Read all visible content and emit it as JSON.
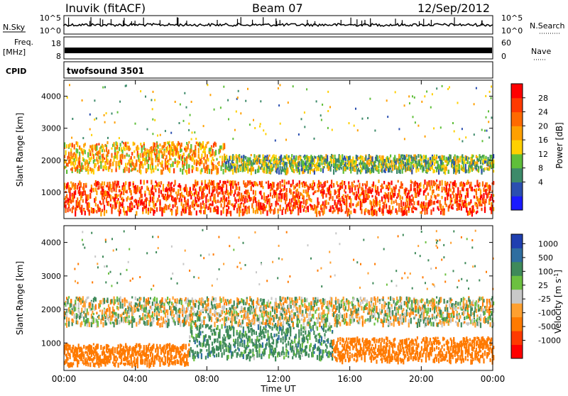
{
  "header": {
    "station": "Inuvik (fitACF)",
    "beam": "Beam 07",
    "date": "12/Sep/2012"
  },
  "strip_nsky": {
    "left_label": "N.Sky",
    "right_label": "N.Search",
    "tick_top": "10^5",
    "tick_bottom": "10^0",
    "right_tick_top": "10^5",
    "right_tick_bottom": "10^0"
  },
  "strip_freq": {
    "left_label_line1": "Freq.",
    "left_label_line2": "[MHz]",
    "tick_left_top": "18",
    "tick_left_bottom": "8",
    "right_label": "Nave",
    "right_tick_top": "60",
    "right_tick_bottom": "0"
  },
  "cpid": {
    "label": "CPID",
    "program": "twofsound 3501"
  },
  "power_panel": {
    "ylabel": "Slant Range [km]",
    "yticks": [
      "1000",
      "2000",
      "3000",
      "4000"
    ],
    "colorbar_label": "Power [dB]",
    "colorbar_ticks": [
      "28",
      "24",
      "20",
      "16",
      "12",
      "8",
      "4"
    ],
    "colors": [
      "#1a1aff",
      "#2b4fb0",
      "#3d8a6a",
      "#5fbf3a",
      "#ffd000",
      "#ffa000",
      "#ff6a00",
      "#ff3a00",
      "#ff0000"
    ]
  },
  "velocity_panel": {
    "ylabel": "Slant Range [km]",
    "yticks": [
      "1000",
      "2000",
      "3000",
      "4000"
    ],
    "colorbar_label": "Velocity [m s",
    "colorbar_label_sup": "-1",
    "colorbar_label_end": "]",
    "colorbar_ticks": [
      "1000",
      "500",
      "100",
      "25",
      "-25",
      "-100",
      "-500",
      "-1000"
    ],
    "colors": [
      "#1f3fb0",
      "#2f6ea0",
      "#3f8a5a",
      "#6cc040",
      "#c8c8c8",
      "#ffa030",
      "#ff7a00",
      "#ff3a00",
      "#ff0000"
    ]
  },
  "xaxis": {
    "label": "Time UT",
    "ticks": [
      "00:00",
      "04:00",
      "08:00",
      "12:00",
      "16:00",
      "20:00",
      "00:00"
    ]
  },
  "chart_data": [
    {
      "type": "heatmap",
      "title": "Power",
      "xlabel": "",
      "ylabel": "Slant Range [km]",
      "xlim": [
        0,
        24
      ],
      "ylim": [
        180,
        4500
      ],
      "x_unit": "hours UT",
      "colorbar": {
        "label": "Power [dB]",
        "ticks": [
          4,
          8,
          12,
          16,
          20,
          24,
          28
        ],
        "range": [
          0,
          30
        ]
      },
      "bands": [
        {
          "x": [
            0,
            24
          ],
          "y": [
            400,
            1400
          ],
          "level_db": 24
        },
        {
          "x": [
            0,
            9
          ],
          "y": [
            1700,
            2600
          ],
          "level_db": 18
        },
        {
          "x": [
            9,
            24
          ],
          "y": [
            1700,
            2200
          ],
          "level_db": 12
        }
      ]
    },
    {
      "type": "heatmap",
      "title": "Velocity",
      "xlabel": "Time UT",
      "ylabel": "Slant Range [km]",
      "xlim": [
        0,
        24
      ],
      "ylim": [
        180,
        4500
      ],
      "x_unit": "hours UT",
      "colorbar": {
        "label": "Velocity [m s-1]",
        "ticks": [
          -1000,
          -500,
          -100,
          -25,
          25,
          100,
          500,
          1000
        ]
      },
      "bands": [
        {
          "x": [
            0,
            7
          ],
          "y": [
            400,
            1000
          ],
          "velocity": -300
        },
        {
          "x": [
            7,
            15
          ],
          "y": [
            600,
            1600
          ],
          "velocity": 150
        },
        {
          "x": [
            15,
            24
          ],
          "y": [
            500,
            1200
          ],
          "velocity": -300
        },
        {
          "x": [
            0,
            24
          ],
          "y": [
            1600,
            2400
          ],
          "velocity": 0
        }
      ]
    }
  ]
}
